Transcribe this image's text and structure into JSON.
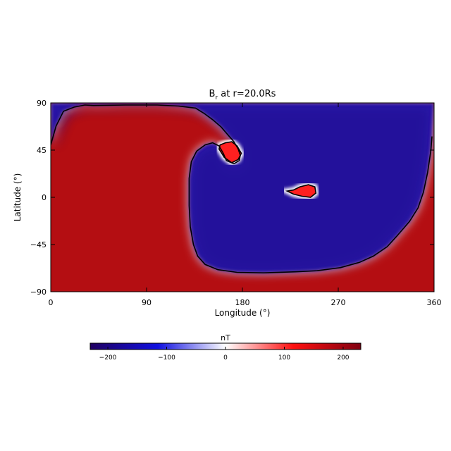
{
  "chart_data": {
    "type": "heatmap",
    "title": "B",
    "title_subscript": "r",
    "title_suffix": " at r=20.0Rs",
    "xlabel": "Longitude (°)",
    "ylabel": "Latitude (°)",
    "xlim": [
      0,
      360
    ],
    "ylim": [
      -90,
      90
    ],
    "xticks": [
      0,
      90,
      180,
      270,
      360
    ],
    "yticks": [
      90,
      45,
      0,
      -45,
      -90
    ],
    "colorbar": {
      "label": "nT",
      "range": [
        -230,
        230
      ],
      "ticks": [
        -200,
        -100,
        0,
        100,
        200
      ],
      "colors": [
        "#200060",
        "#1010e0",
        "#ffffff",
        "#ff1010",
        "#800010"
      ]
    },
    "neutral_line": {
      "color": "#000000",
      "boundary_main": [
        [
          0,
          50
        ],
        [
          5,
          68
        ],
        [
          12,
          82
        ],
        [
          22,
          86
        ],
        [
          32,
          88
        ],
        [
          40,
          87.5
        ],
        [
          70,
          88
        ],
        [
          100,
          88
        ],
        [
          120,
          87
        ],
        [
          136,
          85
        ],
        [
          144,
          80
        ],
        [
          152,
          74
        ],
        [
          160,
          67
        ],
        [
          166,
          60
        ],
        [
          172,
          53
        ],
        [
          176,
          46
        ],
        [
          178,
          40
        ],
        [
          177,
          35
        ],
        [
          172,
          32
        ],
        [
          165,
          35
        ],
        [
          162,
          42
        ],
        [
          158,
          49
        ],
        [
          152,
          52
        ],
        [
          145,
          50
        ],
        [
          137,
          44
        ],
        [
          132,
          34
        ],
        [
          130,
          18
        ],
        [
          130,
          -8
        ],
        [
          131,
          -28
        ],
        [
          134,
          -45
        ],
        [
          138,
          -56
        ],
        [
          145,
          -64
        ],
        [
          157,
          -69
        ],
        [
          175,
          -71.5
        ],
        [
          200,
          -72
        ],
        [
          230,
          -71
        ],
        [
          250,
          -70
        ],
        [
          272,
          -67
        ],
        [
          290,
          -62
        ],
        [
          303,
          -56
        ],
        [
          316,
          -47
        ],
        [
          325,
          -37
        ],
        [
          337,
          -23
        ],
        [
          345,
          -10
        ],
        [
          350,
          5
        ],
        [
          354,
          24
        ],
        [
          357,
          45
        ],
        [
          358,
          58
        ]
      ],
      "island_center": [
        [
          222,
          6
        ],
        [
          228,
          3
        ],
        [
          236,
          1
        ],
        [
          244,
          0
        ],
        [
          249,
          4
        ],
        [
          248,
          10
        ],
        [
          242,
          12
        ],
        [
          234,
          10
        ],
        [
          228,
          7
        ]
      ],
      "island_north": [
        [
          158,
          46
        ],
        [
          163,
          38
        ],
        [
          170,
          33
        ],
        [
          176,
          36
        ],
        [
          179,
          42
        ],
        [
          175,
          49
        ],
        [
          170,
          53
        ],
        [
          164,
          52
        ],
        [
          159,
          50
        ]
      ]
    },
    "regions": [
      {
        "sign": "positive",
        "value": 185,
        "color": "#b40e12"
      },
      {
        "sign": "negative",
        "value": -180,
        "color": "#2a14a8"
      }
    ]
  }
}
